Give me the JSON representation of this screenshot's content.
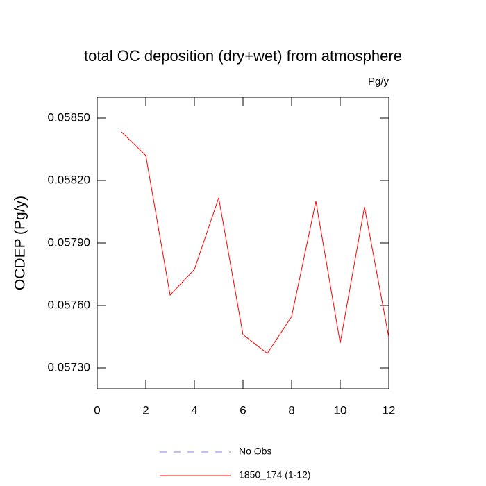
{
  "chart_data": {
    "type": "line",
    "title": "total OC deposition (dry+wet) from atmosphere",
    "units": "Pg/y",
    "y_label": "OCDEP  (Pg/y)",
    "x": [
      1,
      2,
      3,
      4,
      5,
      6,
      7,
      8,
      9,
      10,
      11,
      12
    ],
    "series": [
      {
        "name": "No Obs",
        "color": "#8080ff",
        "dashed": true,
        "values": [
          null,
          null,
          null,
          null,
          null,
          null,
          null,
          null,
          null,
          null,
          null,
          null
        ]
      },
      {
        "name": "1850_174 (1-12)",
        "color": "#ff0000",
        "dashed": false,
        "values": [
          0.058433,
          0.05832,
          0.05765,
          0.057773,
          0.058117,
          0.05746,
          0.05737,
          0.057547,
          0.0581,
          0.05742,
          0.058073,
          0.057447
        ]
      }
    ],
    "xlim": [
      0,
      12
    ],
    "xticks": [
      0,
      2,
      4,
      6,
      8,
      10,
      12
    ],
    "ylim": [
      0.0572,
      0.0586
    ],
    "yticks": [
      {
        "value": 0.0573,
        "label": "0.05730"
      },
      {
        "value": 0.0576,
        "label": "0.05760"
      },
      {
        "value": 0.0579,
        "label": "0.05790"
      },
      {
        "value": 0.0582,
        "label": "0.05820"
      },
      {
        "value": 0.0585,
        "label": "0.05850"
      }
    ],
    "grid": false
  }
}
